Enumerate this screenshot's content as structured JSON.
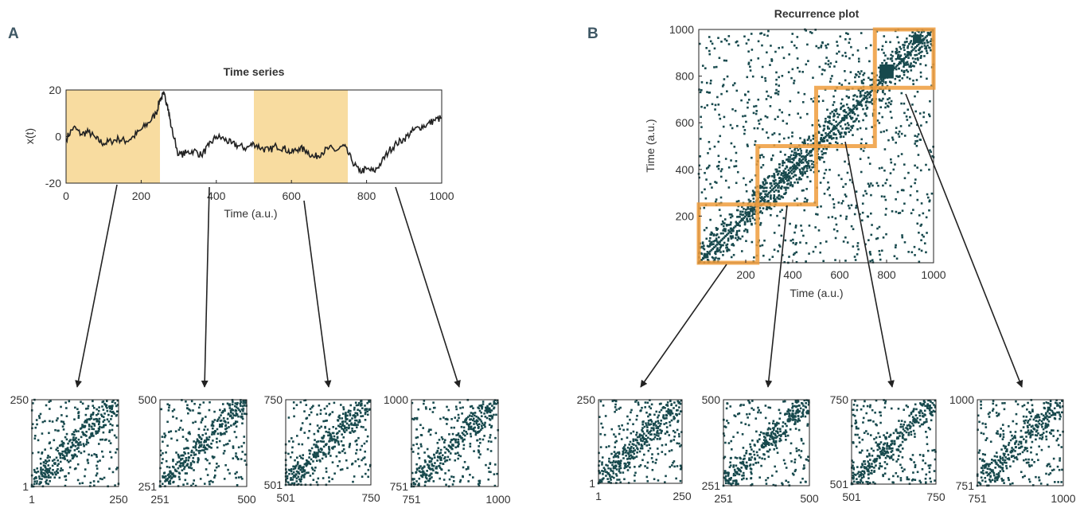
{
  "panels": {
    "a_letter": "A",
    "b_letter": "B"
  },
  "colors": {
    "highlight_fill": "#f8dca0",
    "highlight_border": "#ef9c3c",
    "recurrence_dot": "#17494d",
    "halo": "#f6c8a0",
    "line": "#222222"
  },
  "chart_data": [
    {
      "id": "time-series",
      "type": "line",
      "title": "Time series",
      "xlabel": "Time (a.u.)",
      "ylabel": "x(t)",
      "xlim": [
        0,
        1000
      ],
      "ylim": [
        -20,
        20
      ],
      "xticks": [
        0,
        200,
        400,
        600,
        800,
        1000
      ],
      "yticks": [
        -20,
        0,
        20
      ],
      "highlighted_intervals": [
        [
          0,
          250
        ],
        [
          500,
          750
        ]
      ],
      "series": [
        {
          "x": [
            0,
            20,
            40,
            60,
            80,
            100,
            120,
            140,
            160,
            180,
            200,
            220,
            240,
            250,
            260,
            270,
            280,
            300,
            320,
            340,
            360,
            380,
            400,
            420,
            440,
            460,
            480,
            500,
            520,
            540,
            560,
            580,
            600,
            620,
            640,
            660,
            680,
            700,
            720,
            740,
            760,
            780,
            800,
            820,
            840,
            860,
            880,
            900,
            920,
            940,
            960,
            980,
            1000
          ],
          "y": [
            -1,
            4,
            1,
            2,
            -1,
            -3,
            -2,
            -1,
            -2,
            0,
            3,
            6,
            10,
            16,
            18,
            14,
            4,
            -8,
            -7,
            -6,
            -8,
            -4,
            0,
            -1,
            -3,
            -4,
            -5,
            -3,
            -5,
            -6,
            -4,
            -5,
            -7,
            -5,
            -6,
            -9,
            -7,
            -5,
            -6,
            -4,
            -10,
            -15,
            -14,
            -15,
            -11,
            -6,
            -3,
            -1,
            2,
            4,
            5,
            7,
            8
          ]
        }
      ]
    },
    {
      "id": "recurrence-plot",
      "type": "heatmap",
      "title": "Recurrence plot",
      "xlabel": "Time (a.u.)",
      "ylabel": "Time (a.u.)",
      "xlim": [
        0,
        1000
      ],
      "ylim": [
        0,
        1000
      ],
      "xticks": [
        200,
        400,
        600,
        800,
        1000
      ],
      "yticks": [
        200,
        400,
        600,
        800,
        1000
      ],
      "highlighted_blocks": [
        [
          0,
          250
        ],
        [
          250,
          500
        ],
        [
          500,
          750
        ],
        [
          750,
          1000
        ]
      ]
    },
    {
      "id": "sub-recurrence-plots-a",
      "type": "heatmap",
      "windows": [
        {
          "xtick_labels": [
            "1",
            "250"
          ],
          "ytick_labels": [
            "1",
            "250"
          ]
        },
        {
          "xtick_labels": [
            "251",
            "500"
          ],
          "ytick_labels": [
            "251",
            "500"
          ]
        },
        {
          "xtick_labels": [
            "501",
            "750"
          ],
          "ytick_labels": [
            "501",
            "750"
          ]
        },
        {
          "xtick_labels": [
            "751",
            "1000"
          ],
          "ytick_labels": [
            "751",
            "1000"
          ]
        }
      ]
    },
    {
      "id": "sub-recurrence-plots-b",
      "type": "heatmap",
      "windows": [
        {
          "xtick_labels": [
            "1",
            "250"
          ],
          "ytick_labels": [
            "1",
            "250"
          ]
        },
        {
          "xtick_labels": [
            "251",
            "500"
          ],
          "ytick_labels": [
            "251",
            "500"
          ]
        },
        {
          "xtick_labels": [
            "501",
            "750"
          ],
          "ytick_labels": [
            "501",
            "750"
          ]
        },
        {
          "xtick_labels": [
            "751",
            "1000"
          ],
          "ytick_labels": [
            "751",
            "1000"
          ]
        }
      ]
    }
  ]
}
